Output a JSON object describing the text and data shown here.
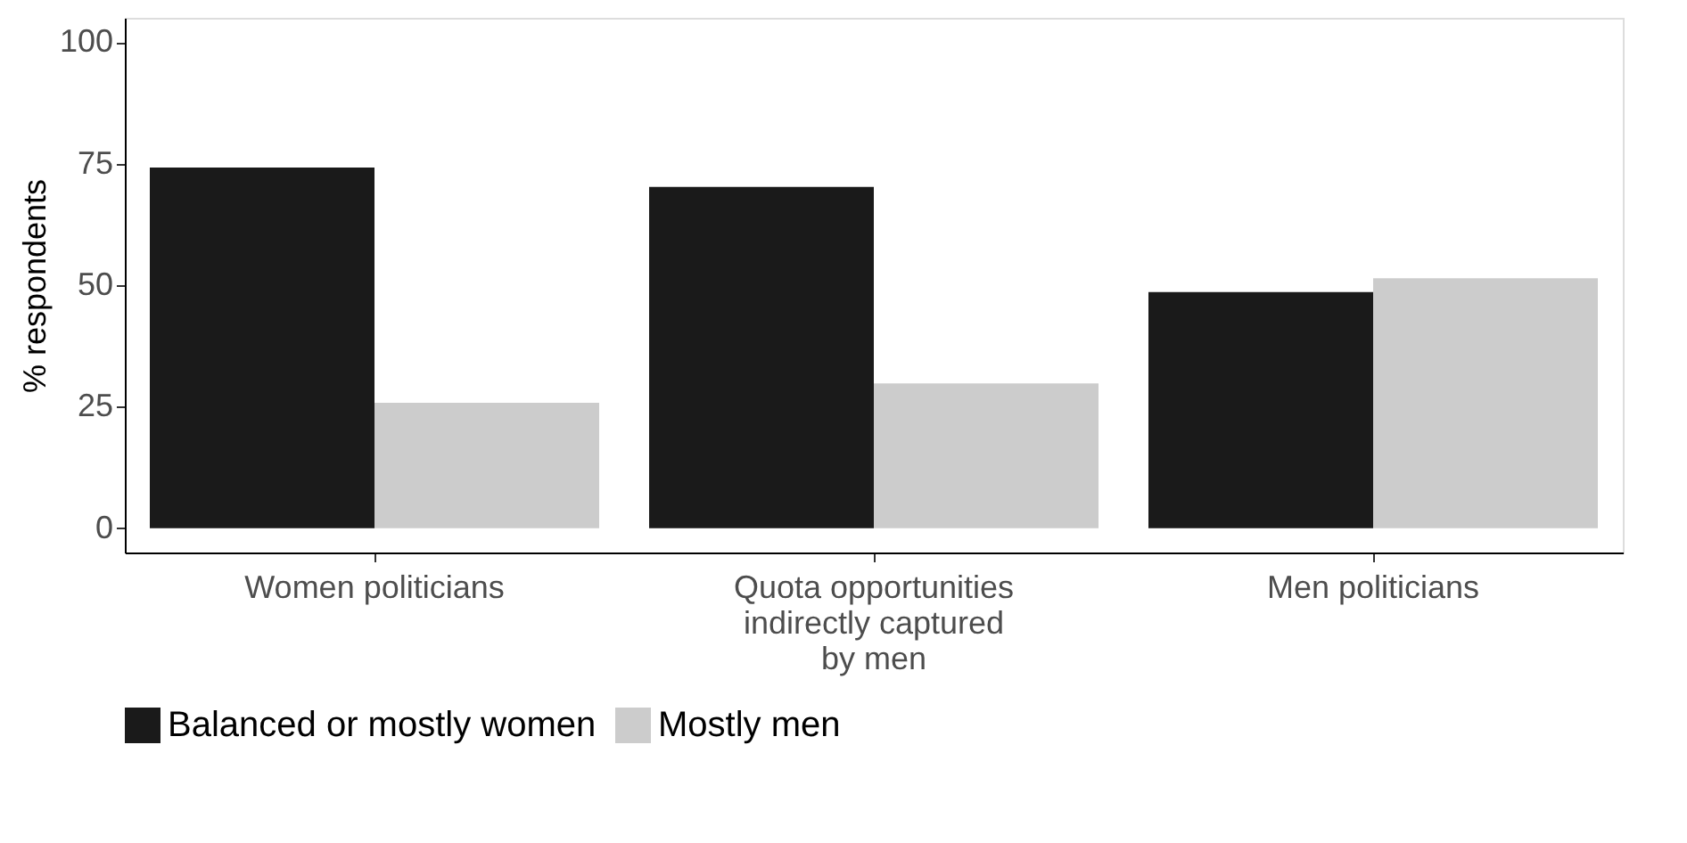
{
  "chart_data": {
    "type": "bar",
    "ylabel": "% respondents",
    "categories": [
      "Women politicians",
      "Quota opportunities indirectly captured by men",
      "Men politicians"
    ],
    "series": [
      {
        "name": "Balanced or mostly women",
        "color": "#1a1a1a",
        "values": [
          74.2,
          70.2,
          48.6
        ]
      },
      {
        "name": "Mostly men",
        "color": "#cccccc",
        "values": [
          25.8,
          29.8,
          51.4
        ]
      }
    ],
    "ylim": [
      -5,
      105
    ],
    "yticks": [
      0,
      25,
      50,
      75,
      100
    ],
    "grid": false,
    "legend": "bottom"
  }
}
